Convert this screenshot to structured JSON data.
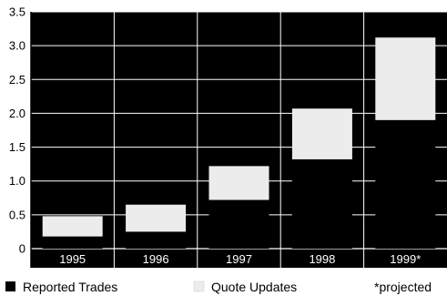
{
  "chart_data": {
    "type": "bar",
    "stacked": true,
    "categories": [
      "1995",
      "1996",
      "1997",
      "1998",
      "1999*"
    ],
    "series": [
      {
        "name": "Reported Trades",
        "values": [
          0.18,
          0.25,
          0.72,
          1.32,
          1.9
        ],
        "color": "#000000"
      },
      {
        "name": "Quote Updates",
        "values": [
          0.3,
          0.4,
          0.5,
          0.75,
          1.22
        ],
        "color": "#ececec"
      }
    ],
    "yticks": [
      "0",
      "0.5",
      "1.0",
      "1.5",
      "2.0",
      "2.5",
      "3.0",
      "3.5"
    ],
    "ylim": [
      0,
      3.5
    ],
    "grid": true,
    "legend_position": "bottom",
    "note": "*projected",
    "title": "",
    "xlabel": "",
    "ylabel": ""
  }
}
